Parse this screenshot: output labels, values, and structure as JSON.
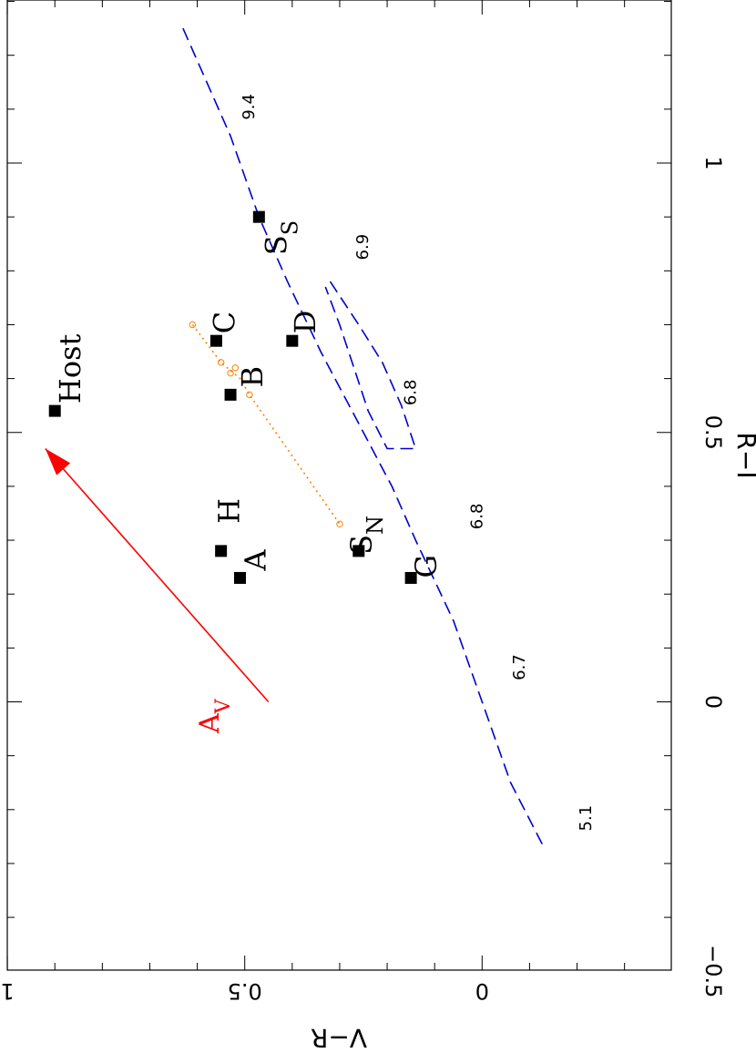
{
  "chart_data": {
    "type": "scatter",
    "orientation": "rotated-90-clockwise",
    "xlabel": "R−I",
    "ylabel": "V−R",
    "xlim": [
      -0.6,
      1.3
    ],
    "ylim": [
      -0.5,
      1.0
    ],
    "x_ticks": [
      -0.5,
      0,
      0.5,
      1
    ],
    "x_tick_labels": [
      "−0.5",
      "0",
      "0.5",
      "1"
    ],
    "y_ticks": [
      0,
      0.5,
      1
    ],
    "y_tick_labels": [
      "0",
      "0.5",
      "1"
    ],
    "grid": false,
    "legend": "none",
    "colors": {
      "points": "#000000",
      "track": "#0000cc",
      "extinction": "#ff0000",
      "dotted": "#ff8000"
    },
    "points": [
      {
        "label": "Host",
        "x": 0.54,
        "y": 0.9,
        "sub": ""
      },
      {
        "label": "C",
        "x": 0.67,
        "y": 0.56,
        "sub": ""
      },
      {
        "label": "B",
        "x": 0.57,
        "y": 0.53,
        "sub": ""
      },
      {
        "label": "D",
        "x": 0.67,
        "y": 0.4,
        "sub": ""
      },
      {
        "label": "H",
        "x": 0.28,
        "y": 0.55,
        "sub": ""
      },
      {
        "label": "A",
        "x": 0.23,
        "y": 0.51,
        "sub": ""
      },
      {
        "label": "S",
        "x": 0.28,
        "y": 0.26,
        "sub": "N"
      },
      {
        "label": "G",
        "x": 0.23,
        "y": 0.15,
        "sub": ""
      },
      {
        "label": "S",
        "x": 0.9,
        "y": 0.47,
        "sub": "S"
      }
    ],
    "track_labels": [
      {
        "text": "9.4",
        "x": 1.08,
        "y": 0.48
      },
      {
        "text": "6.9",
        "x": 0.82,
        "y": 0.24
      },
      {
        "text": "6.8",
        "x": 0.55,
        "y": 0.14
      },
      {
        "text": "6.8",
        "x": 0.32,
        "y": 0.0
      },
      {
        "text": "6.7",
        "x": 0.04,
        "y": -0.09
      },
      {
        "text": "5.1",
        "x": -0.24,
        "y": -0.23
      }
    ],
    "track_line": [
      [
        1.25,
        0.63
      ],
      [
        1.05,
        0.53
      ],
      [
        0.9,
        0.47
      ],
      [
        0.78,
        0.41
      ],
      [
        0.65,
        0.34
      ],
      [
        0.55,
        0.28
      ],
      [
        0.45,
        0.22
      ],
      [
        0.4,
        0.19
      ],
      [
        0.3,
        0.14
      ],
      [
        0.15,
        0.06
      ],
      [
        0.0,
        0.0
      ],
      [
        -0.15,
        -0.06
      ],
      [
        -0.27,
        -0.13
      ]
    ],
    "track_loop": [
      [
        0.78,
        0.32
      ],
      [
        0.7,
        0.26
      ],
      [
        0.63,
        0.21
      ],
      [
        0.55,
        0.17
      ],
      [
        0.47,
        0.14
      ],
      [
        0.47,
        0.2
      ],
      [
        0.54,
        0.24
      ],
      [
        0.62,
        0.27
      ],
      [
        0.7,
        0.3
      ],
      [
        0.77,
        0.33
      ]
    ],
    "dotted_line": [
      [
        0.7,
        0.61
      ],
      [
        0.63,
        0.55
      ],
      [
        0.6,
        0.51
      ],
      [
        0.57,
        0.49
      ],
      [
        0.33,
        0.3
      ]
    ],
    "dotted_markers": [
      [
        0.7,
        0.61
      ],
      [
        0.63,
        0.55
      ],
      [
        0.61,
        0.53
      ],
      [
        0.62,
        0.52
      ],
      [
        0.57,
        0.49
      ],
      [
        0.33,
        0.3
      ]
    ],
    "extinction_vector": {
      "label": "A",
      "sub": "V",
      "from": [
        0.0,
        0.45
      ],
      "to": [
        0.47,
        0.92
      ]
    }
  }
}
